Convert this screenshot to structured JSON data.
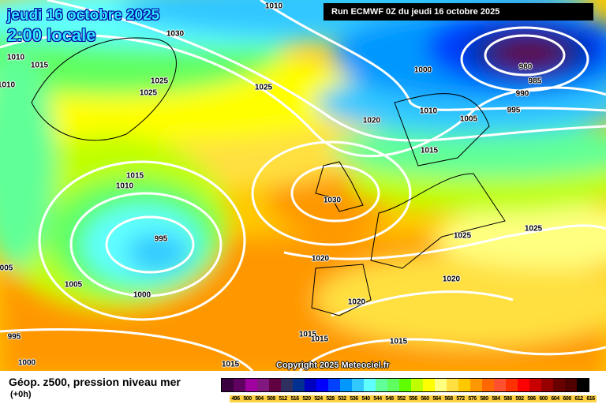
{
  "header": {
    "date": "jeudi 16 octobre 2025",
    "time": "2:00 locale",
    "run": "Run ECMWF 0Z du jeudi 16 octobre 2025",
    "copyright": "Copyright 2025 Meteociel.fr"
  },
  "legend": {
    "title": "Géop. z500, pression niveau mer",
    "subtitle": "(+0h)",
    "levels": [
      "496",
      "500",
      "504",
      "508",
      "512",
      "516",
      "520",
      "524",
      "528",
      "532",
      "536",
      "540",
      "544",
      "548",
      "552",
      "556",
      "560",
      "564",
      "568",
      "572",
      "576",
      "580",
      "584",
      "588",
      "592",
      "596",
      "600",
      "604",
      "608",
      "612",
      "616"
    ],
    "colors": [
      "#3a0040",
      "#600060",
      "#a000a0",
      "#801880",
      "#600040",
      "#303060",
      "#003090",
      "#0000c0",
      "#0000ff",
      "#0040ff",
      "#0098ff",
      "#30c8ff",
      "#60ffff",
      "#60ff98",
      "#60ff60",
      "#60ff00",
      "#c0ff00",
      "#ffff00",
      "#ffff80",
      "#ffe040",
      "#ffc800",
      "#ff9800",
      "#ff6800",
      "#ff5030",
      "#ff3000",
      "#ff0000",
      "#c80000",
      "#980000",
      "#680000",
      "#500000",
      "#000000"
    ]
  },
  "isobar_labels": [
    "1010",
    "1030",
    "1010",
    "1015",
    "1010",
    "1025",
    "1025",
    "1025",
    "1000",
    "980",
    "985",
    "990",
    "995",
    "1010",
    "1005",
    "1020",
    "1015",
    "1015",
    "1010",
    "1030",
    "995",
    "1025",
    "1025",
    "005",
    "1020",
    "1005",
    "1020",
    "1000",
    "1020",
    "995",
    "1015",
    "1015",
    "1015",
    "1000",
    "1015"
  ]
}
